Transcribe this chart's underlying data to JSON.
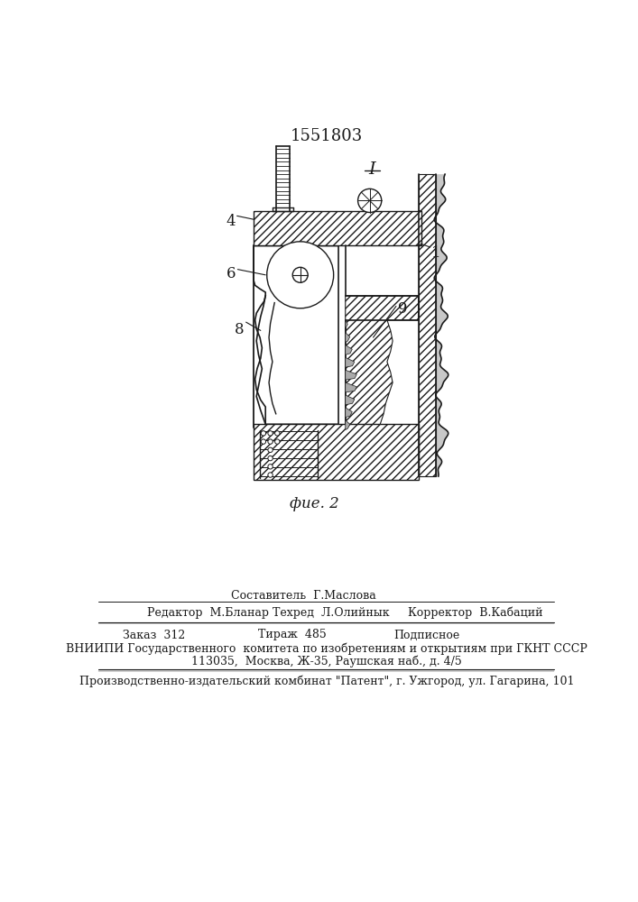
{
  "patent_number": "1551803",
  "fig_label": "фие. 2",
  "label_I": "I",
  "footer": {
    "sostavitel": "Составитель  Г.Маслова",
    "redaktor": "Редактор  М.Бланар",
    "tekhred": "Техред  Л.Олийнык",
    "korrektor": "Корректор  В.Кабаций",
    "zakaz": "Заказ  312",
    "tirazh": "Тираж  485",
    "podpisnoe": "Подписное",
    "vniip1": "ВНИИПИ Государственного  комитета по изобретениям и открытиям при ГКНТ СССР",
    "vniip2": "113035,  Москва, Ж-35, Раушская наб., д. 4/5",
    "zavod": "Производственно-издательский комбинат \"Патент\", г. Ужгород, ул. Гагарина, 101"
  },
  "bg_color": "#ffffff",
  "line_color": "#1a1a1a"
}
